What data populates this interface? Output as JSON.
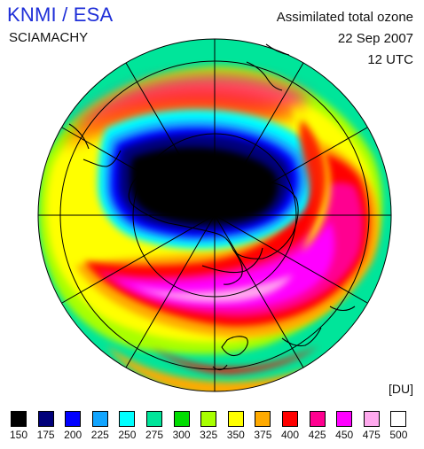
{
  "header": {
    "organization": "KNMI / ESA",
    "instrument": "SCIAMACHY",
    "product": "Assimilated total ozone",
    "date": "22 Sep 2007",
    "time": "12 UTC"
  },
  "legend": {
    "unit": "[DU]",
    "bins": [
      {
        "value": "150",
        "color": "#000000"
      },
      {
        "value": "175",
        "color": "#00007a"
      },
      {
        "value": "200",
        "color": "#0000ff"
      },
      {
        "value": "225",
        "color": "#12a5ff"
      },
      {
        "value": "250",
        "color": "#00ffff"
      },
      {
        "value": "275",
        "color": "#00e59a"
      },
      {
        "value": "300",
        "color": "#00dd00"
      },
      {
        "value": "325",
        "color": "#a8ff00"
      },
      {
        "value": "350",
        "color": "#ffff00"
      },
      {
        "value": "375",
        "color": "#ffaa00"
      },
      {
        "value": "400",
        "color": "#ff0000"
      },
      {
        "value": "425",
        "color": "#ff0090"
      },
      {
        "value": "450",
        "color": "#ff00ff"
      },
      {
        "value": "475",
        "color": "#ffaaee"
      },
      {
        "value": "500",
        "color": "#ffffff"
      }
    ]
  },
  "map": {
    "projection": "polar stereographic, south pole",
    "field": "total ozone column",
    "ozone_hole_center": "over East Antarctica"
  }
}
